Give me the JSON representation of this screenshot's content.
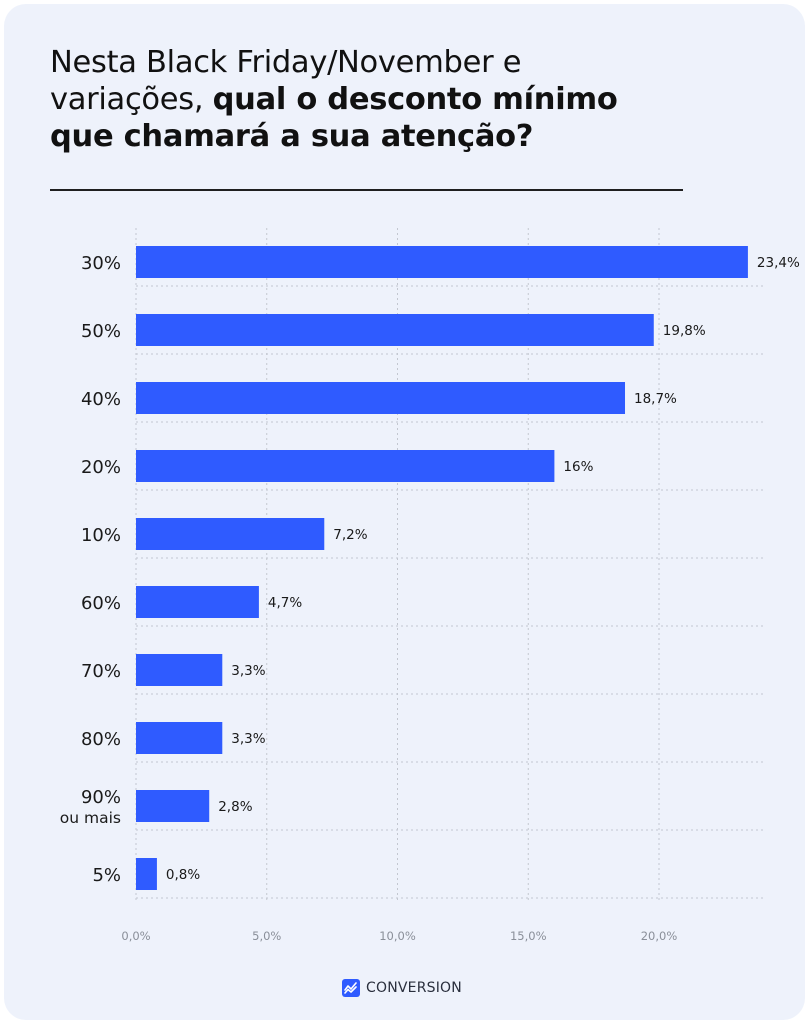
{
  "title": {
    "line1": "Nesta Black Friday/November e",
    "line2_regular": "variações, ",
    "line2_bold": "qual o desconto mínimo",
    "line3_bold": "que chamará a sua atenção?"
  },
  "brand": {
    "name": "CONVERSION",
    "icon": "conversion-logo-icon",
    "color": "#2f5bff"
  },
  "colors": {
    "bar": "#2f5bff",
    "background": "#eef2fb",
    "grid": "#c3c7d0"
  },
  "chart_data": {
    "type": "bar",
    "orientation": "horizontal",
    "title": "Nesta Black Friday/November e variações, qual o desconto mínimo que chamará a sua atenção?",
    "categories": [
      [
        "30%"
      ],
      [
        "50%"
      ],
      [
        "40%"
      ],
      [
        "20%"
      ],
      [
        "10%"
      ],
      [
        "60%"
      ],
      [
        "70%"
      ],
      [
        "80%"
      ],
      [
        "90%",
        "ou mais"
      ],
      [
        "5%"
      ]
    ],
    "values": [
      23.4,
      19.8,
      18.7,
      16,
      7.2,
      4.7,
      3.3,
      3.3,
      2.8,
      0.8
    ],
    "value_labels": [
      "23,4%",
      "19,8%",
      "18,7%",
      "16%",
      "7,2%",
      "4,7%",
      "3,3%",
      "3,3%",
      "2,8%",
      "0,8%"
    ],
    "x_ticks": [
      0,
      5,
      10,
      15,
      20
    ],
    "x_tick_labels": [
      "0,0%",
      "5,0%",
      "10,0%",
      "15,0%",
      "20,0%"
    ],
    "xlim": [
      0,
      24
    ],
    "grid": true
  }
}
